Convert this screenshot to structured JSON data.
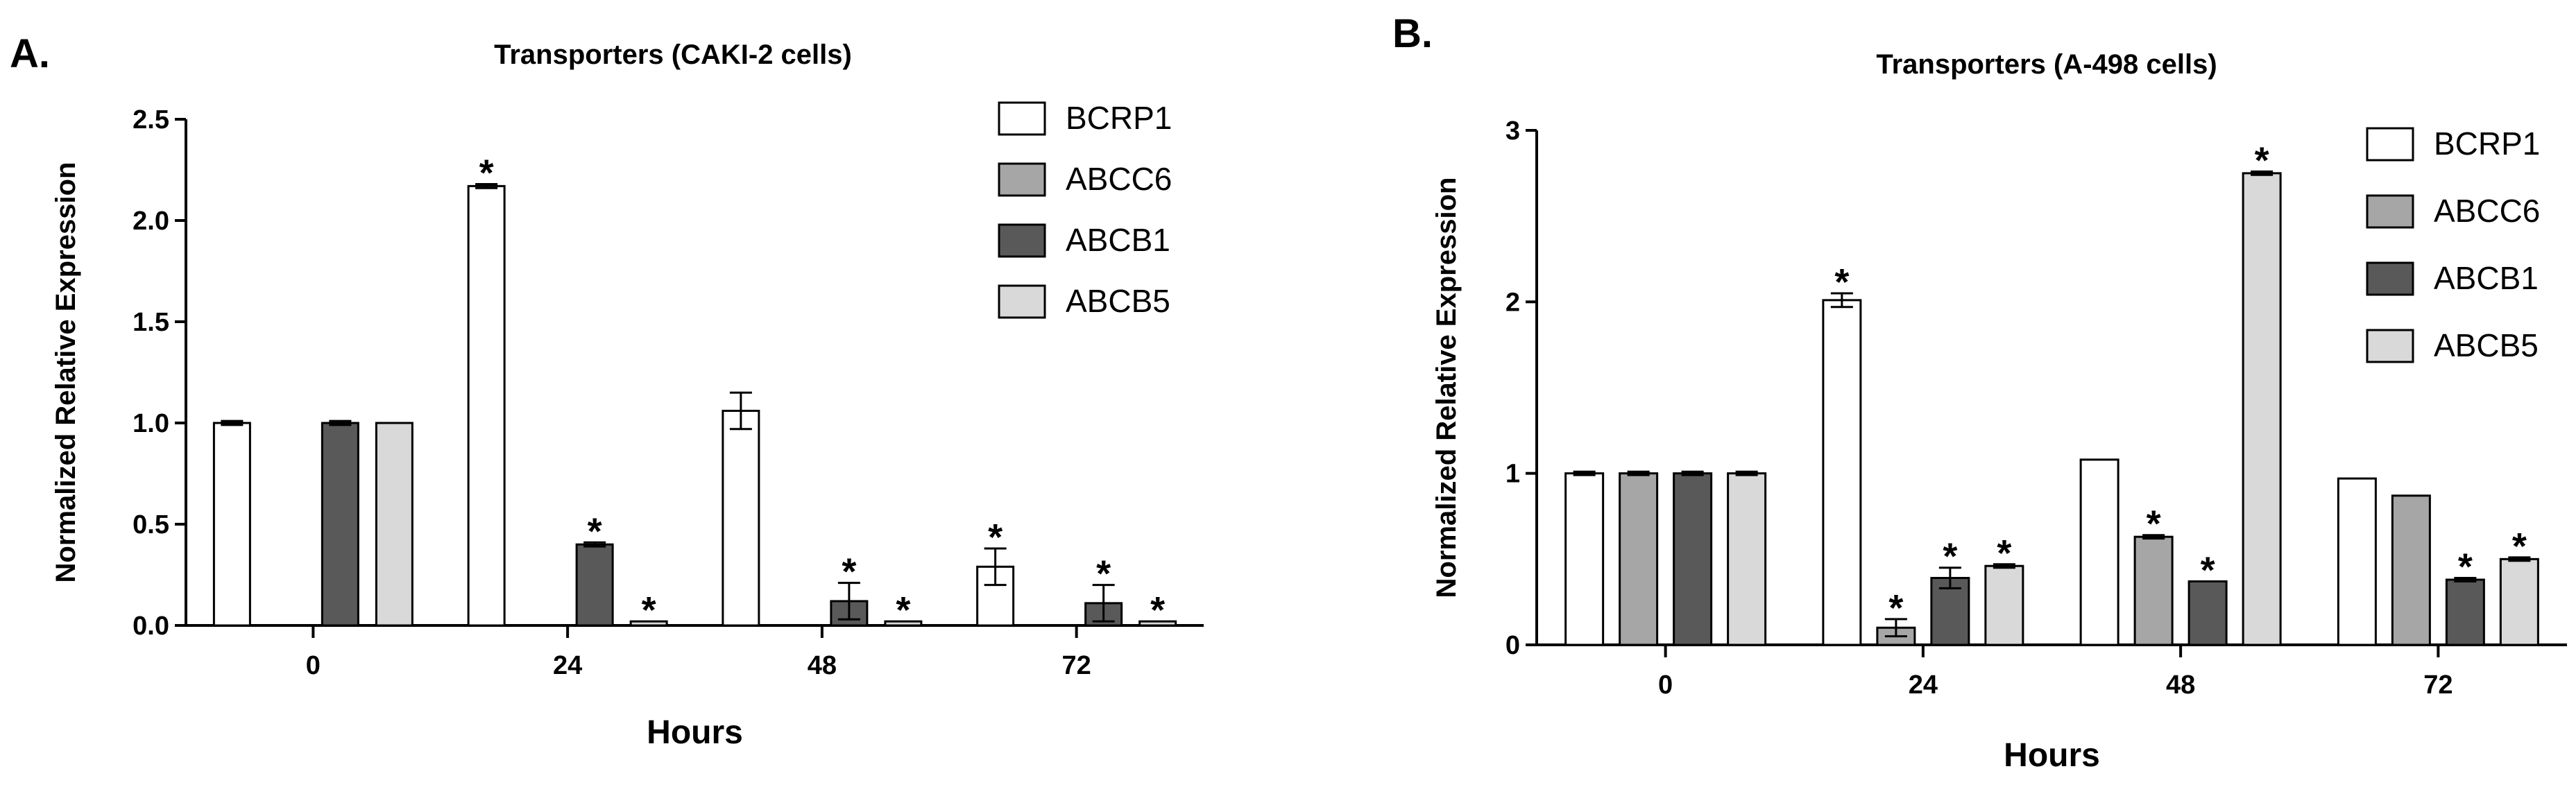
{
  "figure": {
    "colors": {
      "BCRP1": "#ffffff",
      "ABCC6": "#a6a6a6",
      "ABCB1": "#595959",
      "ABCB5": "#d9d9d9"
    }
  },
  "chart_data": [
    {
      "panel": "A.",
      "type": "bar",
      "title": "Transporters (CAKI-2 cells)",
      "xlabel": "Hours",
      "ylabel": "Normalized Relative Expression",
      "ylim": [
        0,
        2.5
      ],
      "yticks": [
        "0.0",
        "0.5",
        "1.0",
        "1.5",
        "2.0",
        "2.5"
      ],
      "categories": [
        "0",
        "24",
        "48",
        "72"
      ],
      "legend_position": "top-right",
      "series": [
        {
          "name": "BCRP1",
          "values": [
            1.0,
            2.17,
            1.06,
            0.29
          ],
          "errors": [
            0.01,
            0.01,
            0.09,
            0.09
          ],
          "significant": [
            false,
            true,
            false,
            true
          ]
        },
        {
          "name": "ABCC6",
          "values": [
            0,
            0,
            0,
            0
          ],
          "errors": [
            0,
            0,
            0,
            0
          ],
          "significant": [
            false,
            false,
            false,
            false
          ]
        },
        {
          "name": "ABCB1",
          "values": [
            1.0,
            0.4,
            0.12,
            0.11
          ],
          "errors": [
            0.01,
            0.01,
            0.09,
            0.09
          ],
          "significant": [
            false,
            true,
            true,
            true
          ]
        },
        {
          "name": "ABCB5",
          "values": [
            1.0,
            0.02,
            0.02,
            0.02
          ],
          "errors": [
            0.0,
            0.0,
            0.0,
            0.0
          ],
          "significant": [
            false,
            true,
            true,
            true
          ]
        }
      ]
    },
    {
      "panel": "B.",
      "type": "bar",
      "title": "Transporters (A-498 cells)",
      "xlabel": "Hours",
      "ylabel": "Normalized Relative Expression",
      "ylim": [
        0,
        3
      ],
      "yticks": [
        "0",
        "1",
        "2",
        "3"
      ],
      "categories": [
        "0",
        "24",
        "48",
        "72"
      ],
      "legend_position": "top-right",
      "series": [
        {
          "name": "BCRP1",
          "values": [
            1.0,
            2.01,
            1.08,
            0.97
          ],
          "errors": [
            0.01,
            0.04,
            0.0,
            0.0
          ],
          "significant": [
            false,
            true,
            false,
            false
          ]
        },
        {
          "name": "ABCC6",
          "values": [
            1.0,
            0.1,
            0.63,
            0.87
          ],
          "errors": [
            0.01,
            0.05,
            0.01,
            0.0
          ],
          "significant": [
            false,
            true,
            true,
            false
          ]
        },
        {
          "name": "ABCB1",
          "values": [
            1.0,
            0.39,
            0.37,
            0.38
          ],
          "errors": [
            0.01,
            0.06,
            0.0,
            0.01
          ],
          "significant": [
            false,
            true,
            true,
            true
          ]
        },
        {
          "name": "ABCB5",
          "values": [
            1.0,
            0.46,
            2.75,
            0.5
          ],
          "errors": [
            0.01,
            0.01,
            0.01,
            0.01
          ],
          "significant": [
            false,
            true,
            true,
            true
          ]
        }
      ]
    }
  ]
}
